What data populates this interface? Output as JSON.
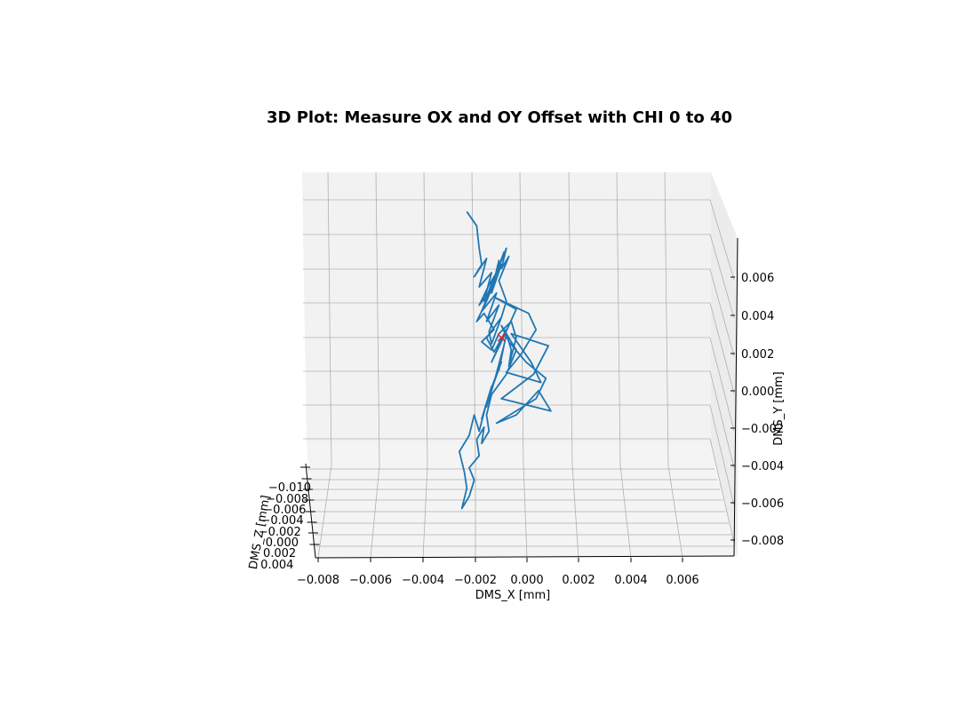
{
  "chart_data": {
    "type": "line3d",
    "title": "3D Plot: Measure OX and OY Offset with CHI 0 to 40",
    "xlabel": "DMS_X [mm]",
    "ylabel": "DMS_Y [mm]",
    "zlabel": "DMS_Z [mm]",
    "x_ticks": [
      "−0.008",
      "−0.006",
      "−0.004",
      "−0.002",
      "0.000",
      "0.002",
      "0.004",
      "0.006"
    ],
    "y_ticks": [
      "0.006",
      "0.004",
      "0.002",
      "0.000",
      "−0.002",
      "−0.004",
      "−0.006",
      "−0.008"
    ],
    "z_ticks": [
      "−0.010",
      "−0.008",
      "−0.006",
      "−0.004",
      "−0.002",
      "0.000",
      "0.002",
      "0.004"
    ],
    "xlim": [
      -0.0088,
      0.0078
    ],
    "ylim": [
      -0.0088,
      0.0078
    ],
    "zlim": [
      -0.011,
      0.005
    ],
    "grid": true,
    "series": [
      {
        "color": "#1f77b4",
        "x": [
          -0.002,
          -0.0016,
          -0.0015,
          -0.0014,
          -0.0017,
          -0.0012,
          -0.0015,
          -0.001,
          -0.0013,
          -0.0009,
          -0.0014,
          -0.0008,
          -0.0012,
          -0.0007,
          -0.0011,
          -0.001,
          -0.0006,
          -0.0012,
          -0.0009,
          -0.0004,
          -0.001,
          -0.0006,
          0.0,
          -0.0009,
          0.0005,
          0.0008,
          0.0002,
          -0.0004,
          0.001,
          0.0006,
          -0.0002,
          0.0013,
          0.0007,
          -0.0006,
          0.0014,
          0.0009,
          0.0,
          -0.0008,
          0.0008,
          0.0012,
          0.0004,
          -0.0003,
          -0.0006,
          0.0,
          -0.0004,
          -0.001,
          -0.0012,
          -0.0011,
          -0.0014,
          -0.0013,
          -0.0016,
          -0.0015,
          -0.0019,
          -0.0017,
          -0.0019,
          -0.0022,
          -0.002,
          -0.0021,
          -0.0023,
          -0.0019,
          -0.0017,
          -0.0015,
          -0.0012,
          -0.0014,
          -0.001,
          -0.0012,
          -0.0008,
          -0.0011,
          -0.0006,
          -0.0009,
          -0.0005,
          -0.0007,
          -0.0004,
          -0.0002,
          -0.0003,
          0.0,
          -0.0002,
          -0.0007,
          -0.001,
          -0.0014,
          -0.0009,
          -0.0013,
          -0.0016,
          -0.0012,
          -0.001,
          -0.0015,
          -0.0011,
          -0.0008,
          -0.0012,
          -0.0009,
          -0.0006,
          -0.001,
          -0.0007,
          -0.0009,
          -0.0005,
          -0.0008,
          -0.0004,
          -0.0006,
          -0.0003,
          -0.0007,
          -0.0004,
          -0.0006
        ],
        "y": [
          0.007,
          0.0063,
          0.0052,
          0.0044,
          0.0038,
          0.0047,
          0.0033,
          0.004,
          0.0026,
          0.0036,
          0.0021,
          0.003,
          0.0016,
          0.0024,
          0.0011,
          0.0005,
          0.0018,
          0.0008,
          0.0001,
          0.0012,
          -0.0004,
          0.0006,
          0.0022,
          0.0028,
          0.002,
          0.0012,
          0.0,
          -0.0009,
          -0.0014,
          -0.0004,
          0.001,
          0.0004,
          -0.001,
          -0.0022,
          -0.0028,
          -0.0018,
          -0.003,
          -0.0034,
          -0.0022,
          -0.0012,
          -0.0004,
          0.0006,
          0.0014,
          0.0002,
          -0.001,
          -0.002,
          -0.003,
          -0.0038,
          -0.0044,
          -0.0036,
          -0.0042,
          -0.005,
          -0.0056,
          -0.0062,
          -0.007,
          -0.0076,
          -0.0066,
          -0.0058,
          -0.0048,
          -0.004,
          -0.003,
          -0.0038,
          -0.0024,
          -0.0032,
          -0.0016,
          -0.0026,
          -0.001,
          -0.002,
          -0.0004,
          -0.0014,
          0.0004,
          -0.0008,
          0.001,
          0.0002,
          -0.0006,
          0.0008,
          0.0016,
          0.001,
          0.0002,
          0.0006,
          0.0012,
          0.002,
          0.0016,
          0.0026,
          0.0032,
          0.0024,
          0.0034,
          0.004,
          0.0028,
          0.0038,
          0.0044,
          0.003,
          0.0046,
          0.0036,
          0.005,
          0.004,
          0.0052,
          0.0042,
          0.0048,
          0.0036,
          0.0026,
          0.0018
        ],
        "z": [
          0.0,
          0.0,
          0.0,
          0.0,
          0.0,
          0.0,
          0.0,
          0.0,
          0.0,
          0.0,
          0.0,
          0.0,
          0.0,
          0.0,
          0.0,
          0.0,
          0.0,
          0.0,
          0.0,
          0.0,
          0.0,
          0.0,
          0.0,
          0.0,
          0.0,
          0.0,
          0.0,
          0.0,
          0.0,
          0.0,
          0.0,
          0.0,
          0.0,
          0.0,
          0.0,
          0.0,
          0.0,
          0.0,
          0.0,
          0.0,
          0.0,
          0.0,
          0.0,
          0.0,
          0.0,
          0.0,
          0.0,
          0.0,
          0.0,
          0.0,
          0.0,
          0.0,
          0.0,
          0.0,
          0.0,
          0.0,
          0.0,
          0.0,
          0.0,
          0.0,
          0.0,
          0.0,
          0.0,
          0.0,
          0.0,
          0.0,
          0.0,
          0.0,
          0.0,
          0.0,
          0.0,
          0.0,
          0.0,
          0.0,
          0.0,
          0.0,
          0.0,
          0.0,
          0.0,
          0.0,
          0.0,
          0.0,
          0.0,
          0.0,
          0.0,
          0.0,
          0.0,
          0.0,
          0.0,
          0.0,
          0.0,
          0.0,
          0.0,
          0.0,
          0.0,
          0.0,
          0.0,
          0.0,
          0.0,
          0.0,
          0.0,
          0.0
        ]
      }
    ],
    "marker": {
      "x": -0.0006,
      "y": 0.0008,
      "z": 0.0,
      "symbol": "x",
      "color": "#d62728"
    }
  }
}
